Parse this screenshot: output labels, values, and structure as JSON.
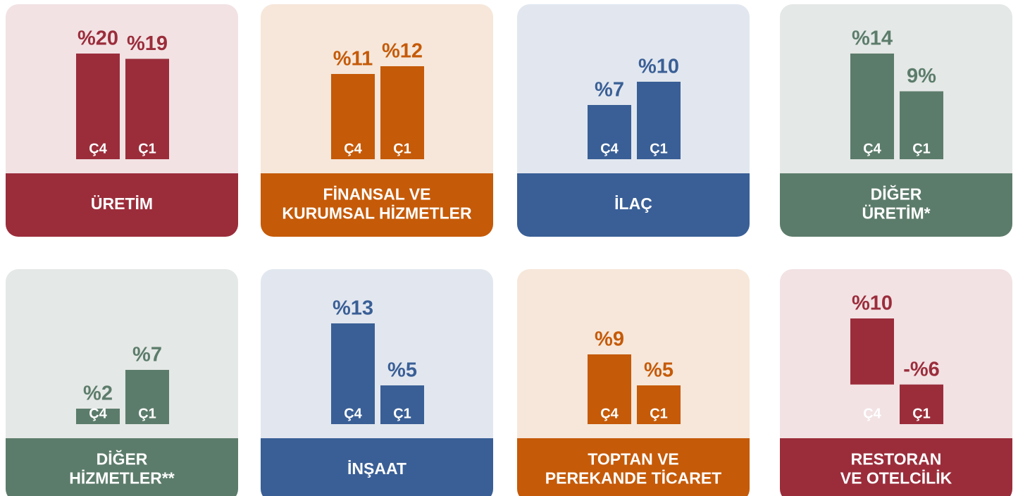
{
  "chart_data": [
    {
      "type": "bar",
      "title": [
        "ÜRETİM"
      ],
      "categories": [
        "Ç4",
        "Ç1"
      ],
      "values": [
        20,
        19
      ],
      "value_labels": [
        "%20",
        "%19"
      ],
      "color": "#9b2d3b",
      "background": "#f2e2e4"
    },
    {
      "type": "bar",
      "title": [
        "FİNANSAL VE",
        "KURUMSAL HİZMETLER"
      ],
      "categories": [
        "Ç4",
        "Ç1"
      ],
      "values": [
        11,
        12
      ],
      "value_labels": [
        "%11",
        "%12"
      ],
      "color": "#c55a08",
      "background": "#f6e7da"
    },
    {
      "type": "bar",
      "title": [
        "İLAÇ"
      ],
      "categories": [
        "Ç4",
        "Ç1"
      ],
      "values": [
        7,
        10
      ],
      "value_labels": [
        "%7",
        "%10"
      ],
      "color": "#3a5f96",
      "background": "#e2e7ef"
    },
    {
      "type": "bar",
      "title": [
        "DİĞER",
        "ÜRETİM*"
      ],
      "categories": [
        "Ç4",
        "Ç1"
      ],
      "values": [
        14,
        9
      ],
      "value_labels": [
        "%14",
        "9%"
      ],
      "color": "#5c7c6b",
      "background": "#e4e8e6"
    },
    {
      "type": "bar",
      "title": [
        "DİĞER",
        "HİZMETLER**"
      ],
      "categories": [
        "Ç4",
        "Ç1"
      ],
      "values": [
        2,
        7
      ],
      "value_labels": [
        "%2",
        "%7"
      ],
      "color": "#5c7c6b",
      "background": "#e4e8e6"
    },
    {
      "type": "bar",
      "title": [
        "İNŞAAT"
      ],
      "categories": [
        "Ç4",
        "Ç1"
      ],
      "values": [
        13,
        5
      ],
      "value_labels": [
        "%13",
        "%5"
      ],
      "color": "#3a5f96",
      "background": "#e2e7ef"
    },
    {
      "type": "bar",
      "title": [
        "TOPTAN VE",
        "PEREKANDE TİCARET"
      ],
      "categories": [
        "Ç4",
        "Ç1"
      ],
      "values": [
        9,
        5
      ],
      "value_labels": [
        "%9",
        "%5"
      ],
      "color": "#c55a08",
      "background": "#f6e7da"
    },
    {
      "type": "bar",
      "title": [
        "RESTORAN",
        "VE OTELCİLİK"
      ],
      "categories": [
        "Ç4",
        "Ç1"
      ],
      "values": [
        10,
        -6
      ],
      "value_labels": [
        "%10",
        "-%6"
      ],
      "color": "#9b2d3b",
      "background": "#f2e2e4"
    }
  ]
}
